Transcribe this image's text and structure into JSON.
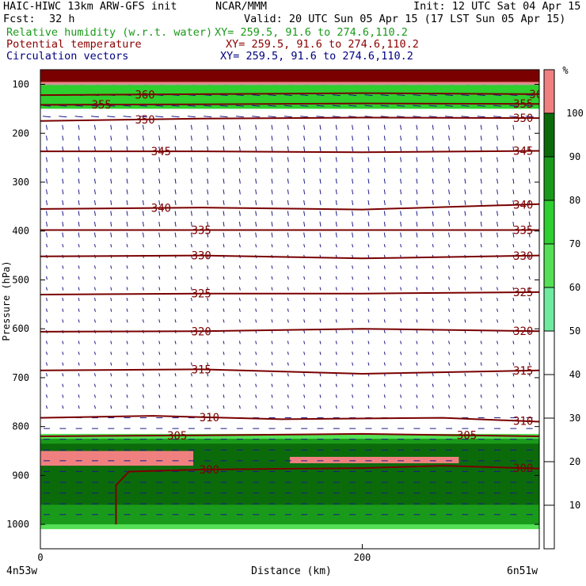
{
  "header": {
    "model": "HAIC-HIWC 13km ARW-GFS init",
    "org": "NCAR/MMM",
    "init": "Init: 12 UTC Sat 04 Apr 15",
    "fcst_label": "Fcst:",
    "fcst_value": "32 h",
    "valid": "Valid: 20 UTC Sun 05 Apr 15 (17 LST Sun 05 Apr 15)",
    "fields": [
      {
        "name": "Relative humidity (w.r.t. water)",
        "xy": "XY= 259.5, 91.6 to 274.6,110.2",
        "color": "#1a9a1a"
      },
      {
        "name": "Potential temperature",
        "xy": "XY= 259.5, 91.6 to 274.6,110.2",
        "color": "#8b0000"
      },
      {
        "name": "Circulation vectors",
        "xy": "XY= 259.5, 91.6 to 274.6,110.2",
        "color": "#000080"
      }
    ]
  },
  "colorbar": {
    "unit": "%",
    "levels": [
      "10",
      "20",
      "30",
      "40",
      "50",
      "60",
      "70",
      "80",
      "90",
      "100"
    ],
    "bins": [
      {
        "min": 0,
        "max": 50,
        "color": "#ffffff"
      },
      {
        "min": 50,
        "max": 60,
        "color": "#6eeb9e"
      },
      {
        "min": 60,
        "max": 70,
        "color": "#55e055"
      },
      {
        "min": 70,
        "max": 80,
        "color": "#2ecf2e"
      },
      {
        "min": 80,
        "max": 90,
        "color": "#1a9a1a"
      },
      {
        "min": 90,
        "max": 100,
        "color": "#0b6b0b"
      },
      {
        "min": 100,
        "max": 110,
        "color": "#f08080"
      }
    ]
  },
  "chart_data": {
    "type": "cross-section",
    "xlabel": "Distance (km)",
    "ylabel": "Pressure (hPa)",
    "x_start_label": "4n53w",
    "x_end_label": "6n51w",
    "xticks": [
      {
        "value": 0,
        "label": "0"
      },
      {
        "value": 200,
        "label": "200"
      }
    ],
    "xlim": [
      0,
      310
    ],
    "ylim": [
      1050,
      70
    ],
    "yticks": [
      {
        "value": 100,
        "label": "100"
      },
      {
        "value": 200,
        "label": "200"
      },
      {
        "value": 300,
        "label": "300"
      },
      {
        "value": 400,
        "label": "400"
      },
      {
        "value": 500,
        "label": "500"
      },
      {
        "value": 600,
        "label": "600"
      },
      {
        "value": 700,
        "label": "700"
      },
      {
        "value": 800,
        "label": "800"
      },
      {
        "value": 900,
        "label": "900"
      },
      {
        "value": 1000,
        "label": "1000"
      }
    ],
    "theta_contours": [
      {
        "label": "360",
        "points": [
          [
            0,
            122
          ],
          [
            100,
            120
          ],
          [
            200,
            118
          ],
          [
            310,
            120
          ]
        ],
        "label_at": [
          65,
          310
        ]
      },
      {
        "label": "355",
        "points": [
          [
            0,
            142
          ],
          [
            100,
            141
          ],
          [
            200,
            139
          ],
          [
            310,
            140
          ]
        ],
        "label_at": [
          38,
          300
        ]
      },
      {
        "label": "350",
        "points": [
          [
            0,
            175
          ],
          [
            100,
            170
          ],
          [
            200,
            168
          ],
          [
            310,
            169
          ]
        ],
        "label_at": [
          65,
          300
        ]
      },
      {
        "label": "345",
        "points": [
          [
            0,
            237
          ],
          [
            100,
            237
          ],
          [
            200,
            239
          ],
          [
            310,
            236
          ]
        ],
        "label_at": [
          75,
          300
        ]
      },
      {
        "label": "340",
        "points": [
          [
            0,
            355
          ],
          [
            100,
            352
          ],
          [
            200,
            356
          ],
          [
            310,
            345
          ]
        ],
        "label_at": [
          75,
          300
        ]
      },
      {
        "label": "335",
        "points": [
          [
            0,
            398
          ],
          [
            100,
            398
          ],
          [
            200,
            398
          ],
          [
            310,
            398
          ]
        ],
        "label_at": [
          100,
          300
        ]
      },
      {
        "label": "330",
        "points": [
          [
            0,
            452
          ],
          [
            100,
            450
          ],
          [
            200,
            456
          ],
          [
            310,
            450
          ]
        ],
        "label_at": [
          100,
          300
        ]
      },
      {
        "label": "325",
        "points": [
          [
            0,
            530
          ],
          [
            100,
            528
          ],
          [
            200,
            528
          ],
          [
            310,
            525
          ]
        ],
        "label_at": [
          100,
          300
        ]
      },
      {
        "label": "320",
        "points": [
          [
            0,
            606
          ],
          [
            100,
            605
          ],
          [
            200,
            600
          ],
          [
            310,
            605
          ]
        ],
        "label_at": [
          100,
          300
        ]
      },
      {
        "label": "315",
        "points": [
          [
            0,
            685
          ],
          [
            100,
            683
          ],
          [
            200,
            692
          ],
          [
            310,
            685
          ]
        ],
        "label_at": [
          100,
          300
        ]
      },
      {
        "label": "310",
        "points": [
          [
            0,
            782
          ],
          [
            70,
            778
          ],
          [
            150,
            785
          ],
          [
            250,
            782
          ],
          [
            310,
            790
          ]
        ],
        "label_at": [
          105,
          300
        ]
      },
      {
        "label": "305",
        "points": [
          [
            0,
            820
          ],
          [
            100,
            818
          ],
          [
            200,
            815
          ],
          [
            310,
            820
          ]
        ],
        "label_at": [
          85,
          265
        ]
      },
      {
        "label": "300",
        "points": [
          [
            47,
            1000
          ],
          [
            47,
            920
          ],
          [
            55,
            892
          ],
          [
            100,
            888
          ],
          [
            200,
            885
          ],
          [
            250,
            880
          ],
          [
            310,
            886
          ]
        ],
        "label_at": [
          105,
          300
        ]
      }
    ],
    "rh_layers": [
      {
        "range": "100+",
        "p_top": 850,
        "p_bottom": 880,
        "x_from": 0,
        "x_to": 95,
        "color": "#f08080"
      },
      {
        "range": "100+",
        "p_top": 862,
        "p_bottom": 875,
        "x_from": 155,
        "x_to": 260,
        "color": "#f08080"
      },
      {
        "range": "100+",
        "p_top": 90,
        "p_bottom": 100,
        "x_from": 0,
        "x_to": 310,
        "color": "#f08080"
      },
      {
        "range": "90-100",
        "p_top": 835,
        "p_bottom": 960,
        "x_from": 0,
        "x_to": 310,
        "color": "#0b6b0b"
      },
      {
        "range": "80-90",
        "p_top": 825,
        "p_bottom": 1000,
        "x_from": 0,
        "x_to": 310,
        "color": "#1a9a1a"
      },
      {
        "range": "50-70",
        "p_top": 815,
        "p_bottom": 1010,
        "x_from": 0,
        "x_to": 310,
        "color": "#55e055"
      },
      {
        "range": "50-100",
        "p_top": 100,
        "p_bottom": 150,
        "x_from": 0,
        "x_to": 310,
        "color": "#2ecf2e"
      }
    ],
    "terrain_top_hPa": 70,
    "terrain_band_hPa": [
      70,
      95
    ]
  }
}
